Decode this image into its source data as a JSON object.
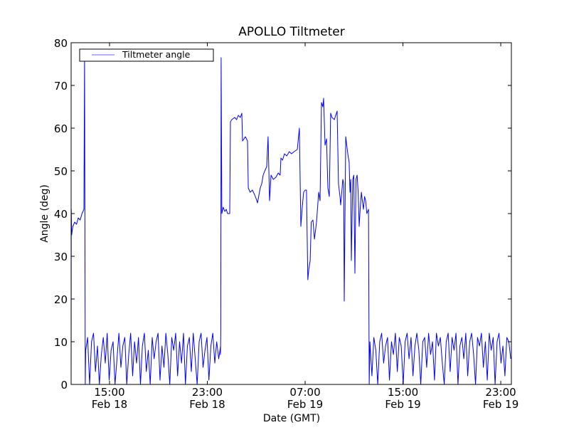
{
  "chart_data": {
    "type": "line",
    "title": "APOLLO Tiltmeter",
    "xlabel": "Date (GMT)",
    "ylabel": "Angle (deg)",
    "x_units": "hours since 00:00 Feb 18 (GMT)",
    "xlim": [
      11.86,
      47.87
    ],
    "ylim": [
      0,
      80
    ],
    "grid": false,
    "legend": {
      "placement": "top-left",
      "entries": [
        "Tiltmeter angle"
      ]
    },
    "line_color": "#0000ff",
    "yticks": [
      0,
      10,
      20,
      30,
      40,
      50,
      60,
      70,
      80
    ],
    "yticklabels": [
      "0",
      "10",
      "20",
      "30",
      "40",
      "50",
      "60",
      "70",
      "80"
    ],
    "xticks": [
      {
        "value": 15,
        "time": "15:00",
        "date": "Feb 18"
      },
      {
        "value": 23,
        "time": "23:00",
        "date": "Feb 18"
      },
      {
        "value": 31,
        "time": "07:00",
        "date": "Feb 19"
      },
      {
        "value": 39,
        "time": "15:00",
        "date": "Feb 19"
      },
      {
        "value": 47,
        "time": "23:00",
        "date": "Feb 19"
      }
    ],
    "series": [
      {
        "name": "Tiltmeter angle",
        "segments": [
          {
            "points": [
              [
                11.86,
                0
              ],
              [
                11.87,
                41
              ],
              [
                11.9,
                35
              ],
              [
                12.0,
                37
              ],
              [
                12.15,
                38
              ],
              [
                12.3,
                37.5
              ],
              [
                12.44,
                39
              ],
              [
                12.6,
                38.5
              ],
              [
                12.75,
                40
              ],
              [
                12.905,
                41
              ],
              [
                12.96,
                77
              ],
              [
                13.02,
                0
              ]
            ]
          },
          {
            "x_start": 13.05,
            "x_step": 0.16,
            "values": [
              8,
              11,
              0,
              10,
              12,
              3,
              9,
              0,
              7,
              11,
              5,
              12,
              1,
              8,
              10,
              0,
              6,
              12,
              4,
              9,
              11,
              0,
              7,
              12,
              2,
              10,
              5,
              11,
              0,
              9,
              12,
              3,
              8,
              0,
              11,
              6,
              10,
              12,
              1,
              9,
              4,
              12,
              7,
              0,
              11,
              8,
              12,
              2,
              10,
              5,
              12,
              0,
              9,
              11,
              3,
              12,
              6,
              0,
              10,
              12,
              4,
              8,
              11,
              1,
              9,
              12,
              5,
              10,
              6,
              9
            ]
          },
          {
            "points": [
              [
                24.07,
                7
              ],
              [
                24.1,
                12
              ],
              [
                24.13,
                76.5
              ],
              [
                24.19,
                40
              ],
              [
                24.3,
                41.5
              ],
              [
                24.43,
                40.5
              ],
              [
                24.55,
                41
              ],
              [
                24.66,
                40
              ],
              [
                24.83,
                40
              ],
              [
                24.89,
                61.5
              ],
              [
                25.0,
                62
              ],
              [
                25.24,
                62.5
              ],
              [
                25.4,
                62
              ],
              [
                25.53,
                63
              ],
              [
                25.7,
                62.5
              ],
              [
                25.82,
                63.5
              ],
              [
                25.88,
                57
              ],
              [
                26.0,
                57.5
              ],
              [
                26.11,
                58
              ],
              [
                26.29,
                57
              ],
              [
                26.35,
                46
              ],
              [
                26.5,
                45
              ],
              [
                26.69,
                45.5
              ],
              [
                26.85,
                44.5
              ],
              [
                26.99,
                43.5
              ],
              [
                27.1,
                42.5
              ],
              [
                27.2,
                44
              ],
              [
                27.33,
                46
              ],
              [
                27.45,
                47
              ],
              [
                27.57,
                49
              ],
              [
                27.7,
                50
              ],
              [
                27.86,
                51
              ],
              [
                27.97,
                58
              ],
              [
                28.09,
                43
              ],
              [
                28.21,
                49
              ],
              [
                28.4,
                48
              ],
              [
                28.61,
                48.5
              ],
              [
                28.8,
                49.5
              ],
              [
                28.96,
                49
              ],
              [
                29.02,
                53
              ],
              [
                29.15,
                52.5
              ],
              [
                29.31,
                54
              ],
              [
                29.5,
                53.5
              ],
              [
                29.7,
                54.5
              ],
              [
                29.89,
                54
              ],
              [
                30.1,
                54.5
              ],
              [
                30.36,
                55
              ],
              [
                30.53,
                60
              ],
              [
                30.65,
                37
              ],
              [
                30.75,
                41
              ],
              [
                30.88,
                45
              ],
              [
                31.0,
                45.5
              ],
              [
                31.11,
                45.5
              ],
              [
                31.22,
                24.5
              ],
              [
                31.3,
                27
              ],
              [
                31.41,
                29
              ],
              [
                31.5,
                38
              ],
              [
                31.64,
                38.5
              ],
              [
                31.76,
                34
              ],
              [
                31.85,
                36
              ],
              [
                31.93,
                38
              ],
              [
                32.11,
                45
              ],
              [
                32.22,
                43
              ],
              [
                32.34,
                66
              ],
              [
                32.45,
                65
              ],
              [
                32.51,
                67
              ],
              [
                32.63,
                56
              ],
              [
                32.75,
                57.5
              ],
              [
                32.86,
                46
              ],
              [
                32.98,
                44
              ],
              [
                33.09,
                63.5
              ],
              [
                33.2,
                62.5
              ],
              [
                33.39,
                62
              ],
              [
                33.5,
                63
              ],
              [
                33.62,
                64
              ],
              [
                33.73,
                47
              ],
              [
                33.85,
                44
              ],
              [
                33.91,
                42
              ],
              [
                34.08,
                48
              ],
              [
                34.15,
                47
              ],
              [
                34.2,
                19.5
              ],
              [
                34.32,
                58
              ],
              [
                34.49,
                54
              ],
              [
                34.6,
                52
              ],
              [
                34.67,
                45
              ],
              [
                34.73,
                48
              ],
              [
                34.78,
                29
              ],
              [
                34.9,
                48
              ],
              [
                34.98,
                49
              ],
              [
                35.07,
                26
              ],
              [
                35.16,
                48
              ],
              [
                35.25,
                49
              ],
              [
                35.34,
                45
              ],
              [
                35.42,
                37
              ],
              [
                35.5,
                41
              ],
              [
                35.6,
                45
              ],
              [
                35.68,
                43
              ],
              [
                35.77,
                41
              ],
              [
                35.86,
                44
              ],
              [
                35.95,
                43
              ],
              [
                36.05,
                40
              ],
              [
                36.18,
                41
              ],
              [
                36.24,
                0
              ]
            ]
          },
          {
            "x_start": 36.3,
            "x_step": 0.16,
            "values": [
              10,
              2,
              11,
              8,
              0,
              10,
              12,
              5,
              9,
              11,
              1,
              10,
              7,
              12,
              3,
              11,
              9,
              0,
              10,
              12,
              6,
              11,
              2,
              9,
              12,
              8,
              0,
              10,
              11,
              4,
              12,
              7,
              10,
              1,
              12,
              9,
              11,
              5,
              0,
              10,
              12,
              3,
              11,
              8,
              12,
              0,
              9,
              11,
              6,
              12,
              2,
              10,
              12,
              7,
              0,
              11,
              9,
              12,
              4,
              10,
              1,
              12,
              8,
              11,
              0,
              10,
              12,
              5,
              9,
              2,
              11,
              10,
              6
            ]
          }
        ]
      }
    ]
  }
}
